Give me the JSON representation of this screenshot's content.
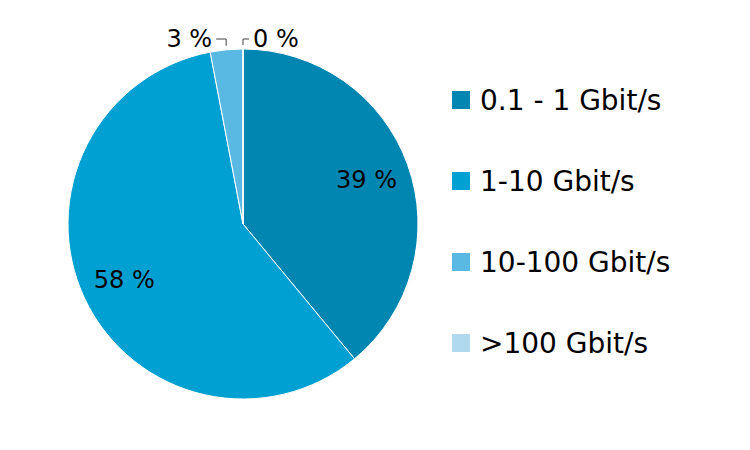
{
  "chart_data": {
    "type": "pie",
    "categories": [
      "0.1 - 1 Gbit/s",
      "1-10 Gbit/s",
      "10-100 Gbit/s",
      ">100 Gbit/s"
    ],
    "values": [
      39,
      58,
      3,
      0
    ],
    "value_labels": [
      "39 %",
      "58 %",
      "3 %",
      "0 %"
    ],
    "colors": [
      "#0086b0",
      "#00a0d2",
      "#5ab9e3",
      "#b0d8ef"
    ],
    "data_labels": true,
    "legend": "right"
  }
}
